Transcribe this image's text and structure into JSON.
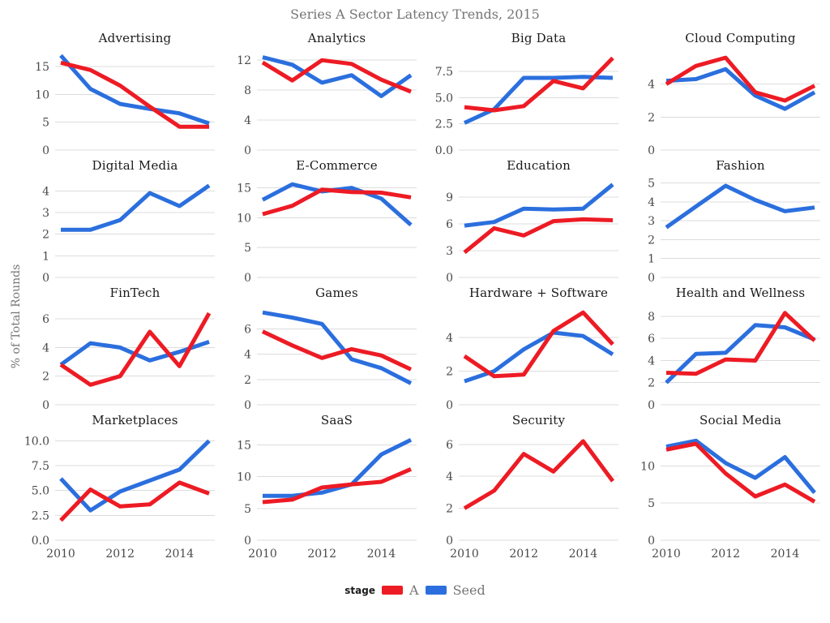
{
  "chart_data": {
    "type": "line",
    "title": "Series A Sector Latency Trends, 2015",
    "ylabel": "% of Total Rounds",
    "x": [
      2010,
      2011,
      2012,
      2013,
      2014,
      2015
    ],
    "xticks": [
      2010,
      2012,
      2014
    ],
    "grid": "horizontal-only",
    "legend": {
      "label": "stage",
      "position": "bottom-center",
      "entries": [
        {
          "name": "A",
          "color": "#ED1B24"
        },
        {
          "name": "Seed",
          "color": "#2B6FDE"
        }
      ]
    },
    "colors": {
      "grid_line": "#DCDCDC",
      "tick_text": "#4A4A4A",
      "muted_text": "#757575",
      "panel_title_text": "#1A1A1A"
    },
    "panels": [
      {
        "title": "Advertising",
        "yticks": [
          "15",
          "10",
          "5",
          "0"
        ],
        "ylim": [
          0,
          17.5
        ],
        "series": [
          {
            "name": "A",
            "values": [
              15.7,
              14.4,
              11.6,
              7.8,
              4.2,
              4.2
            ]
          },
          {
            "name": "Seed",
            "values": [
              17.0,
              11.0,
              8.3,
              7.4,
              6.6,
              4.8
            ]
          }
        ]
      },
      {
        "title": "Analytics",
        "yticks": [
          "12",
          "8",
          "4",
          "0"
        ],
        "ylim": [
          0,
          13.0
        ],
        "series": [
          {
            "name": "A",
            "values": [
              11.7,
              9.3,
              12.0,
              11.5,
              9.4,
              7.8
            ]
          },
          {
            "name": "Seed",
            "values": [
              12.4,
              11.4,
              9.0,
              10.0,
              7.2,
              10.0
            ]
          }
        ]
      },
      {
        "title": "Big Data",
        "yticks": [
          "7.5",
          "5.0",
          "2.5",
          "0.0"
        ],
        "ylim": [
          0,
          9.3
        ],
        "series": [
          {
            "name": "A",
            "values": [
              4.1,
              3.8,
              4.2,
              6.6,
              5.9,
              8.8
            ]
          },
          {
            "name": "Seed",
            "values": [
              2.6,
              3.9,
              6.9,
              6.9,
              7.0,
              6.9
            ]
          }
        ]
      },
      {
        "title": "Cloud Computing",
        "yticks": [
          "4",
          "2",
          "0"
        ],
        "ylim": [
          0,
          5.9
        ],
        "series": [
          {
            "name": "A",
            "values": [
              4.0,
              5.1,
              5.6,
              3.5,
              3.0,
              3.9
            ]
          },
          {
            "name": "Seed",
            "values": [
              4.2,
              4.3,
              4.9,
              3.3,
              2.5,
              3.5
            ]
          }
        ]
      },
      {
        "title": "Digital Media",
        "yticks": [
          "4",
          "3",
          "2",
          "1",
          "0"
        ],
        "ylim": [
          0,
          4.5
        ],
        "series": [
          {
            "name": "Seed",
            "values": [
              2.2,
              2.2,
              2.65,
              3.9,
              3.3,
              4.25
            ]
          }
        ]
      },
      {
        "title": "E-Commerce",
        "yticks": [
          "15",
          "10",
          "5",
          "0"
        ],
        "ylim": [
          0,
          16.3
        ],
        "series": [
          {
            "name": "A",
            "values": [
              10.6,
              12.0,
              14.7,
              14.3,
              14.2,
              13.4
            ]
          },
          {
            "name": "Seed",
            "values": [
              13.0,
              15.6,
              14.4,
              15.0,
              13.2,
              8.8
            ]
          }
        ]
      },
      {
        "title": "Education",
        "yticks": [
          "9",
          "6",
          "3",
          "0"
        ],
        "ylim": [
          0,
          10.9
        ],
        "series": [
          {
            "name": "A",
            "values": [
              2.8,
              5.5,
              4.7,
              6.3,
              6.5,
              6.4
            ]
          },
          {
            "name": "Seed",
            "values": [
              5.8,
              6.2,
              7.7,
              7.6,
              7.7,
              10.4
            ]
          }
        ]
      },
      {
        "title": "Fashion",
        "yticks": [
          "5",
          "4",
          "3",
          "2",
          "1",
          "0"
        ],
        "ylim": [
          0,
          5.15
        ],
        "series": [
          {
            "name": "Seed",
            "values": [
              2.65,
              3.75,
              4.85,
              4.1,
              3.5,
              3.7
            ]
          }
        ]
      },
      {
        "title": "FinTech",
        "yticks": [
          "6",
          "4",
          "2",
          "0"
        ],
        "ylim": [
          0,
          6.8
        ],
        "series": [
          {
            "name": "A",
            "values": [
              2.8,
              1.4,
              2.0,
              5.1,
              2.7,
              6.4
            ]
          },
          {
            "name": "Seed",
            "values": [
              2.8,
              4.3,
              4.0,
              3.1,
              3.7,
              4.4
            ]
          }
        ]
      },
      {
        "title": "Games",
        "yticks": [
          "6",
          "4",
          "2",
          "0"
        ],
        "ylim": [
          0,
          7.7
        ],
        "series": [
          {
            "name": "A",
            "values": [
              5.8,
              4.7,
              3.7,
              4.4,
              3.9,
              2.8
            ]
          },
          {
            "name": "Seed",
            "values": [
              7.3,
              6.9,
              6.4,
              3.6,
              2.9,
              1.7
            ]
          }
        ]
      },
      {
        "title": "Hardware + Software",
        "yticks": [
          "4",
          "2",
          "0"
        ],
        "ylim": [
          0,
          5.8
        ],
        "series": [
          {
            "name": "A",
            "values": [
              2.9,
              1.7,
              1.8,
              4.4,
              5.5,
              3.6
            ]
          },
          {
            "name": "Seed",
            "values": [
              1.4,
              2.0,
              3.3,
              4.3,
              4.1,
              3.0
            ]
          }
        ]
      },
      {
        "title": "Health and Wellness",
        "yticks": [
          "8",
          "6",
          "4",
          "2",
          "0"
        ],
        "ylim": [
          0,
          8.8
        ],
        "series": [
          {
            "name": "A",
            "values": [
              2.9,
              2.8,
              4.1,
              4.0,
              8.3,
              5.8
            ]
          },
          {
            "name": "Seed",
            "values": [
              2.0,
              4.6,
              4.7,
              7.2,
              7.0,
              5.9
            ]
          }
        ]
      },
      {
        "title": "Marketplaces",
        "yticks": [
          "10.0",
          "7.5",
          "5.0",
          "2.5",
          "0.0"
        ],
        "ylim": [
          0,
          10.6
        ],
        "series": [
          {
            "name": "A",
            "values": [
              2.0,
              5.1,
              3.4,
              3.6,
              5.8,
              4.7
            ]
          },
          {
            "name": "Seed",
            "values": [
              6.2,
              3.0,
              4.9,
              6.0,
              7.1,
              10.0
            ]
          }
        ]
      },
      {
        "title": "SaaS",
        "yticks": [
          "15",
          "10",
          "5",
          "0"
        ],
        "ylim": [
          0,
          16.6
        ],
        "series": [
          {
            "name": "A",
            "values": [
              6.0,
              6.4,
              8.3,
              8.8,
              9.2,
              11.2
            ]
          },
          {
            "name": "Seed",
            "values": [
              7.0,
              7.0,
              7.5,
              8.8,
              13.5,
              15.8
            ]
          }
        ]
      },
      {
        "title": "Security",
        "yticks": [
          "6",
          "4",
          "2",
          "0"
        ],
        "ylim": [
          0,
          6.6
        ],
        "series": [
          {
            "name": "A",
            "values": [
              2.0,
              3.1,
              5.4,
              4.3,
              6.2,
              3.7
            ]
          }
        ]
      },
      {
        "title": "Social Media",
        "yticks": [
          "10",
          "5",
          "0"
        ],
        "ylim": [
          0,
          14.2
        ],
        "series": [
          {
            "name": "A",
            "values": [
              12.2,
              13.0,
              9.0,
              5.9,
              7.5,
              5.2
            ]
          },
          {
            "name": "Seed",
            "values": [
              12.6,
              13.4,
              10.4,
              8.4,
              11.2,
              6.4
            ]
          }
        ]
      }
    ]
  }
}
